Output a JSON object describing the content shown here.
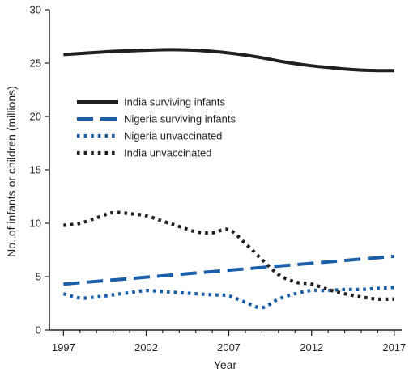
{
  "chart_data": {
    "type": "line",
    "xlabel": "Year",
    "ylabel": "No. of infants or children (millions)",
    "xlim": [
      1997,
      2017
    ],
    "ylim": [
      0,
      30
    ],
    "x_ticks": [
      1997,
      2002,
      2007,
      2012,
      2017
    ],
    "x_tick_labels": [
      "1997",
      "2002",
      "2007",
      "2012",
      "2017"
    ],
    "y_ticks": [
      0,
      5,
      10,
      15,
      20,
      25,
      30
    ],
    "y_tick_labels": [
      "0",
      "5",
      "10",
      "15",
      "20",
      "25",
      "30"
    ],
    "grid": false,
    "legend_position": "upper-left",
    "series": [
      {
        "name": "India surviving infants",
        "style": "solid",
        "color": "#231f20",
        "x": [
          1997,
          1998,
          1999,
          2000,
          2001,
          2002,
          2003,
          2004,
          2005,
          2006,
          2007,
          2008,
          2009,
          2010,
          2011,
          2012,
          2013,
          2014,
          2015,
          2016,
          2017
        ],
        "values": [
          25.8,
          25.9,
          26.0,
          26.1,
          26.15,
          26.2,
          26.25,
          26.25,
          26.2,
          26.1,
          25.95,
          25.75,
          25.5,
          25.2,
          24.95,
          24.75,
          24.6,
          24.45,
          24.35,
          24.3,
          24.3
        ]
      },
      {
        "name": "Nigeria surviving infants",
        "style": "dashed",
        "color": "#1a5fa8",
        "x": [
          1997,
          2017
        ],
        "values": [
          4.3,
          6.9
        ]
      },
      {
        "name": "Nigeria unvaccinated",
        "style": "dotted",
        "color": "#1a5fa8",
        "x": [
          1997,
          1998,
          1999,
          2000,
          2001,
          2002,
          2003,
          2004,
          2005,
          2006,
          2007,
          2008,
          2009,
          2010,
          2011,
          2012,
          2013,
          2014,
          2015,
          2016,
          2017
        ],
        "values": [
          3.4,
          3.0,
          3.1,
          3.3,
          3.5,
          3.7,
          3.6,
          3.5,
          3.4,
          3.3,
          3.2,
          2.6,
          2.1,
          2.9,
          3.4,
          3.7,
          3.7,
          3.8,
          3.8,
          3.9,
          4.0
        ]
      },
      {
        "name": "India unvaccinated",
        "style": "dotted",
        "color": "#231f20",
        "x": [
          1997,
          1998,
          1999,
          2000,
          2001,
          2002,
          2003,
          2004,
          2005,
          2006,
          2007,
          2008,
          2009,
          2010,
          2011,
          2012,
          2013,
          2014,
          2015,
          2016,
          2017
        ],
        "values": [
          9.8,
          10.0,
          10.5,
          11.0,
          10.9,
          10.7,
          10.2,
          9.7,
          9.2,
          9.1,
          9.4,
          8.1,
          6.6,
          5.2,
          4.5,
          4.3,
          3.8,
          3.4,
          3.1,
          2.9,
          2.9
        ]
      }
    ]
  }
}
